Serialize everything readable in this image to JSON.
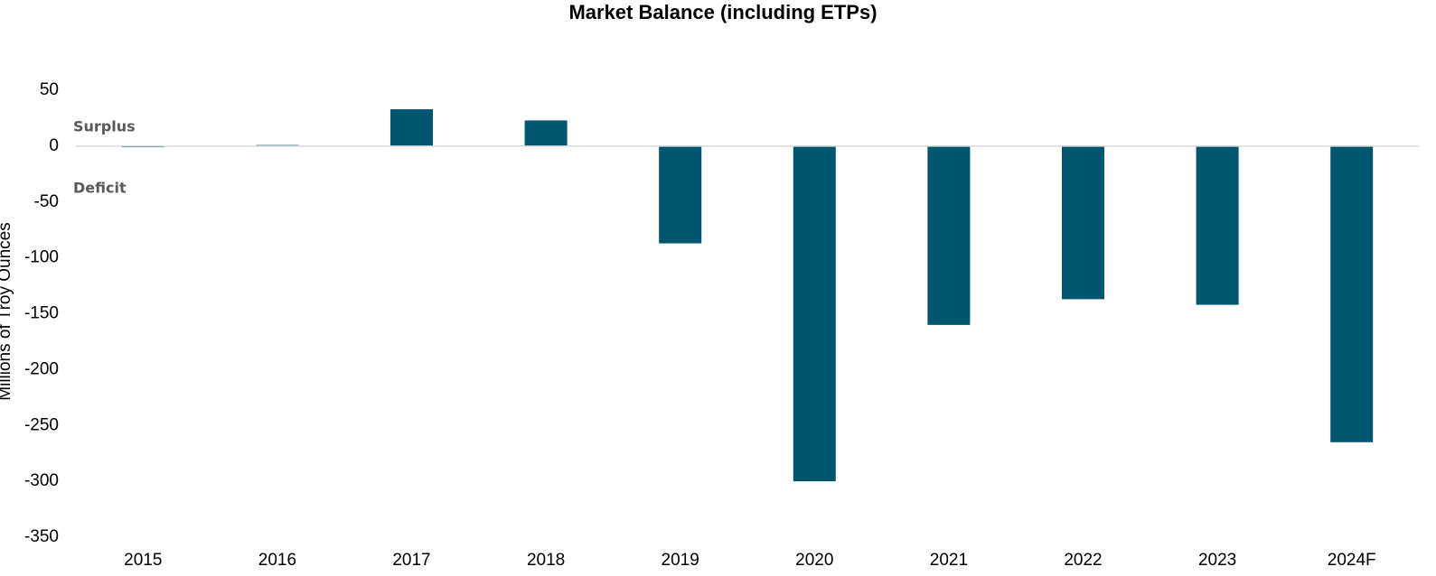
{
  "chart_data": {
    "type": "bar",
    "title": "Market Balance (including ETPs)",
    "y_label": "Millions of Troy Ounces",
    "annotations": [
      "Surplus",
      "Deficit"
    ],
    "categories": [
      "2015",
      "2016",
      "2017",
      "2018",
      "2019",
      "2020",
      "2021",
      "2022",
      "2023",
      "2024F"
    ],
    "values": [
      -1,
      1,
      33,
      23,
      -87,
      -300,
      -160,
      -137,
      -142,
      -265
    ],
    "color": "#00566f",
    "ylim": [
      -350,
      50
    ],
    "yticks": [
      -350,
      -300,
      -250,
      -200,
      -150,
      -100,
      -50,
      0,
      50
    ],
    "grid": false
  }
}
